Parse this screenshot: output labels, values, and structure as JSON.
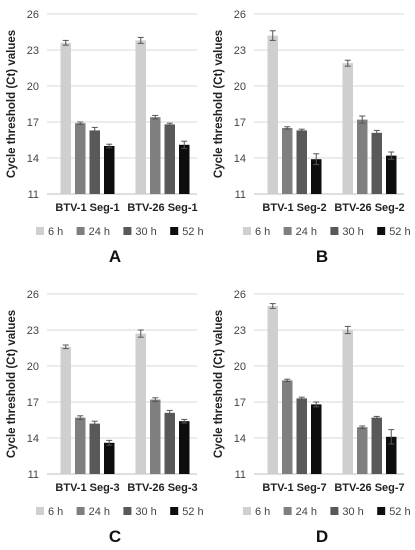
{
  "legend_labels": [
    "6 h",
    "24 h",
    "30 h",
    "52 h"
  ],
  "colors": [
    "#cfcfcf",
    "#7f7f7f",
    "#595959",
    "#0d0d0d"
  ],
  "chart_data": [
    {
      "type": "bar",
      "panel_label": "A",
      "ylabel": "Cycle threshold (Ct) values",
      "ylim": [
        11,
        26
      ],
      "yticks": [
        11,
        14,
        17,
        20,
        23,
        26
      ],
      "categories": [
        "BTV-1 Seg-1",
        "BTV-26 Seg-1"
      ],
      "series": [
        {
          "name": "6 h",
          "values": [
            23.6,
            23.8
          ],
          "errors": [
            0.2,
            0.25
          ]
        },
        {
          "name": "24 h",
          "values": [
            16.9,
            17.4
          ],
          "errors": [
            0.1,
            0.15
          ]
        },
        {
          "name": "30 h",
          "values": [
            16.3,
            16.8
          ],
          "errors": [
            0.25,
            0.1
          ]
        },
        {
          "name": "52 h",
          "values": [
            15.0,
            15.1
          ],
          "errors": [
            0.15,
            0.3
          ]
        }
      ],
      "legend": "bottom"
    },
    {
      "type": "bar",
      "panel_label": "B",
      "ylabel": "Cycle threshold (Ct) values",
      "ylim": [
        11,
        26
      ],
      "yticks": [
        11,
        14,
        17,
        20,
        23,
        26
      ],
      "categories": [
        "BTV-1 Seg-2",
        "BTV-26 Seg-2"
      ],
      "series": [
        {
          "name": "6 h",
          "values": [
            24.2,
            21.9
          ],
          "errors": [
            0.4,
            0.25
          ]
        },
        {
          "name": "24 h",
          "values": [
            16.5,
            17.2
          ],
          "errors": [
            0.1,
            0.3
          ]
        },
        {
          "name": "30 h",
          "values": [
            16.3,
            16.1
          ],
          "errors": [
            0.1,
            0.2
          ]
        },
        {
          "name": "52 h",
          "values": [
            13.9,
            14.2
          ],
          "errors": [
            0.45,
            0.3
          ]
        }
      ],
      "legend": "bottom"
    },
    {
      "type": "bar",
      "panel_label": "C",
      "ylabel": "Cycle threshold (Ct) values",
      "ylim": [
        11,
        26
      ],
      "yticks": [
        11,
        14,
        17,
        20,
        23,
        26
      ],
      "categories": [
        "BTV-1 Seg-3",
        "BTV-26 Seg-3"
      ],
      "series": [
        {
          "name": "6 h",
          "values": [
            21.6,
            22.7
          ],
          "errors": [
            0.15,
            0.3
          ]
        },
        {
          "name": "24 h",
          "values": [
            15.7,
            17.2
          ],
          "errors": [
            0.15,
            0.15
          ]
        },
        {
          "name": "30 h",
          "values": [
            15.2,
            16.1
          ],
          "errors": [
            0.2,
            0.2
          ]
        },
        {
          "name": "52 h",
          "values": [
            13.6,
            15.4
          ],
          "errors": [
            0.2,
            0.15
          ]
        }
      ],
      "legend": "bottom"
    },
    {
      "type": "bar",
      "panel_label": "D",
      "ylabel": "Cycle threshold (Ct) values",
      "ylim": [
        11,
        26
      ],
      "yticks": [
        11,
        14,
        17,
        20,
        23,
        26
      ],
      "categories": [
        "BTV-1 Seg-7",
        "BTV-26 Seg-7"
      ],
      "series": [
        {
          "name": "6 h",
          "values": [
            25.0,
            23.0
          ],
          "errors": [
            0.2,
            0.3
          ]
        },
        {
          "name": "24 h",
          "values": [
            18.8,
            14.9
          ],
          "errors": [
            0.1,
            0.1
          ]
        },
        {
          "name": "30 h",
          "values": [
            17.3,
            15.7
          ],
          "errors": [
            0.1,
            0.1
          ]
        },
        {
          "name": "52 h",
          "values": [
            16.8,
            14.1
          ],
          "errors": [
            0.2,
            0.6
          ]
        }
      ],
      "legend": "bottom"
    }
  ]
}
